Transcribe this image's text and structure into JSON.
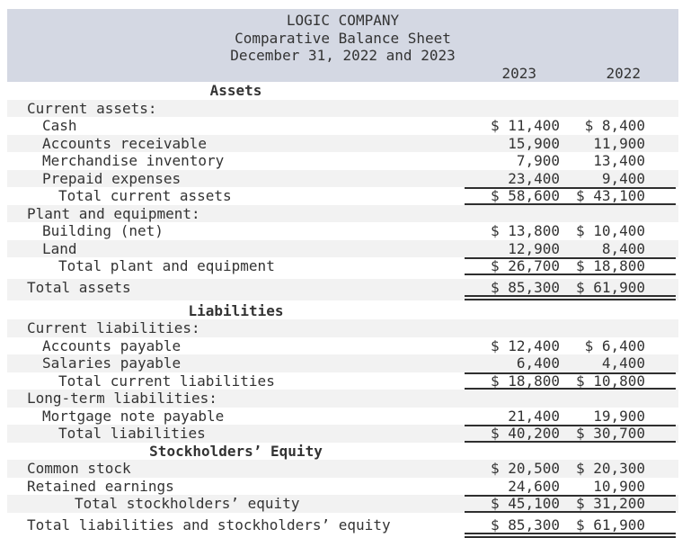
{
  "title_block": {
    "company": "LOGIC COMPANY",
    "statement": "Comparative Balance Sheet",
    "period": "December 31, 2022 and 2023",
    "year_columns": [
      "2023",
      "2022"
    ]
  },
  "colors": {
    "header_bg": "#d4d8e3",
    "stripe_bg": "#f2f2f2",
    "text": "#333333",
    "rule": "#2f2f2f"
  },
  "rows": [
    {
      "label": "Assets",
      "y2023": "",
      "y2022": ""
    },
    {
      "label": "Current assets:",
      "y2023": "",
      "y2022": ""
    },
    {
      "label": "Cash",
      "y2023": "$ 11,400",
      "y2022": "$ 8,400"
    },
    {
      "label": "Accounts receivable",
      "y2023": "15,900",
      "y2022": "11,900"
    },
    {
      "label": "Merchandise inventory",
      "y2023": "7,900",
      "y2022": "13,400"
    },
    {
      "label": "Prepaid expenses",
      "y2023": "23,400",
      "y2022": "9,400"
    },
    {
      "label": "Total current assets",
      "y2023": "$ 58,600",
      "y2022": "$ 43,100"
    },
    {
      "label": "Plant and equipment:",
      "y2023": "",
      "y2022": ""
    },
    {
      "label": "Building (net)",
      "y2023": "$ 13,800",
      "y2022": "$ 10,400"
    },
    {
      "label": "Land",
      "y2023": "12,900",
      "y2022": "8,400"
    },
    {
      "label": "Total plant and equipment",
      "y2023": "$ 26,700",
      "y2022": "$ 18,800"
    },
    {
      "label": "Total assets",
      "y2023": "$ 85,300",
      "y2022": "$ 61,900"
    },
    {
      "label": "Liabilities",
      "y2023": "",
      "y2022": ""
    },
    {
      "label": "Current liabilities:",
      "y2023": "",
      "y2022": ""
    },
    {
      "label": "Accounts payable",
      "y2023": "$ 12,400",
      "y2022": "$ 6,400"
    },
    {
      "label": "Salaries payable",
      "y2023": "6,400",
      "y2022": "4,400"
    },
    {
      "label": "Total current liabilities",
      "y2023": "$ 18,800",
      "y2022": "$ 10,800"
    },
    {
      "label": "Long-term liabilities:",
      "y2023": "",
      "y2022": ""
    },
    {
      "label": "Mortgage note payable",
      "y2023": "21,400",
      "y2022": "19,900"
    },
    {
      "label": "Total liabilities",
      "y2023": "$ 40,200",
      "y2022": "$ 30,700"
    },
    {
      "label": "Stockholders’ Equity",
      "y2023": "",
      "y2022": ""
    },
    {
      "label": "Common stock",
      "y2023": "$ 20,500",
      "y2022": "$ 20,300"
    },
    {
      "label": "Retained earnings",
      "y2023": "24,600",
      "y2022": "10,900"
    },
    {
      "label": "Total stockholders’ equity",
      "y2023": "$ 45,100",
      "y2022": "$ 31,200"
    },
    {
      "label": "Total liabilities and stockholders’ equity",
      "y2023": "$ 85,300",
      "y2022": "$ 61,900"
    }
  ]
}
